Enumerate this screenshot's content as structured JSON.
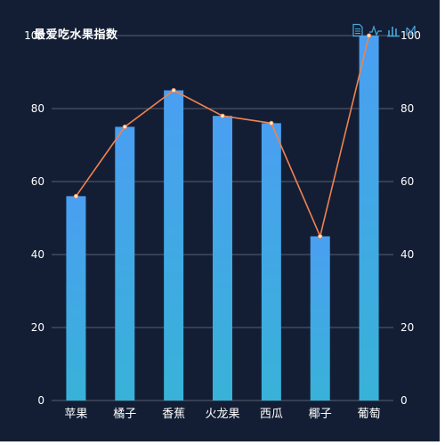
{
  "chart_data": {
    "type": "bar",
    "title": "",
    "categories": [
      "苹果",
      "橘子",
      "香蕉",
      "火龙果",
      "西瓜",
      "椰子",
      "葡萄"
    ],
    "series": [
      {
        "type": "bar",
        "values": [
          56,
          75,
          85,
          78,
          76,
          45,
          100
        ]
      },
      {
        "type": "line",
        "values": [
          56,
          75,
          85,
          78,
          76,
          45,
          100
        ]
      }
    ],
    "ylim": [
      0,
      100
    ],
    "yticks": [
      0,
      20,
      40,
      60,
      80,
      100
    ],
    "y_axes": [
      "left",
      "right"
    ],
    "grid": true,
    "colors": {
      "background": "#131e35",
      "bar_top": "#4a9ff1",
      "bar_bottom": "#38b2d8",
      "line": "#f0824f",
      "point": "#ffe9c9",
      "grid": "#58606f",
      "text": "#ffffff",
      "toolbox": "#4aa7d8"
    }
  },
  "header": {
    "title": "最爱吃水果指数"
  },
  "toolbox": [
    {
      "icon": "data-view-icon"
    },
    {
      "icon": "line-chart-icon"
    },
    {
      "icon": "bar-chart-icon"
    },
    {
      "icon": "restore-icon"
    }
  ]
}
